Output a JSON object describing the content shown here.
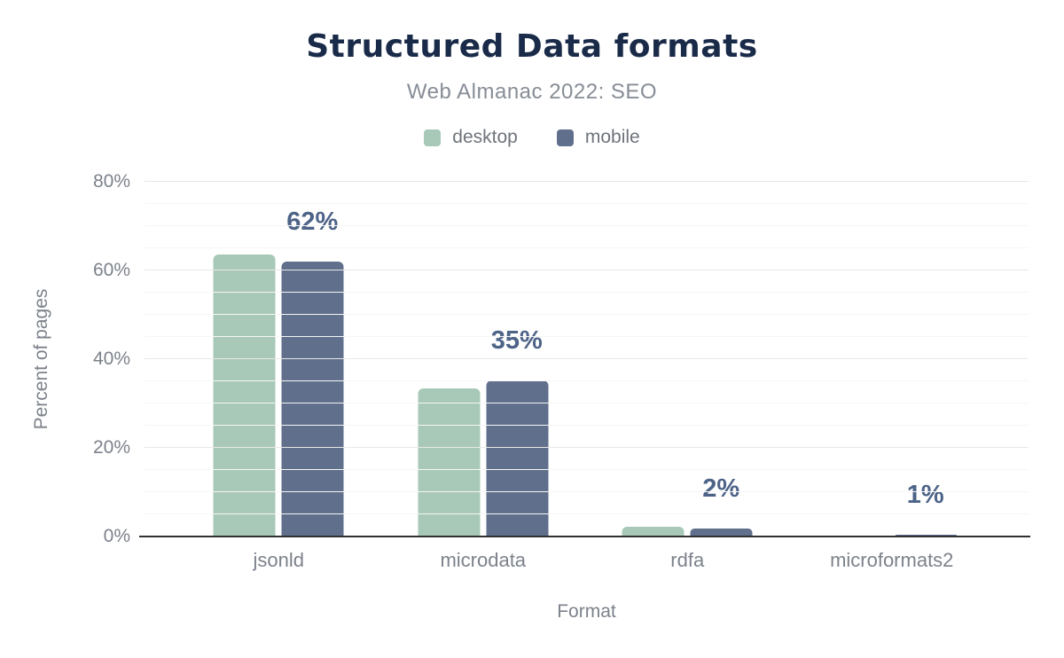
{
  "chart_data": {
    "type": "bar",
    "title": "Structured Data formats",
    "subtitle": "Web Almanac 2022: SEO",
    "xlabel": "Format",
    "ylabel": "Percent of pages",
    "categories": [
      "jsonld",
      "microdata",
      "rdfa",
      "microformats2"
    ],
    "series": [
      {
        "name": "desktop",
        "color": "#a8c9b8",
        "values": [
          63.6,
          33.4,
          2.3,
          0.1
        ]
      },
      {
        "name": "mobile",
        "color": "#5f6f8c",
        "values": [
          62.0,
          35.3,
          1.9,
          0.5
        ]
      }
    ],
    "bar_labels": [
      "62%",
      "35%",
      "2%",
      "1%"
    ],
    "ylim": [
      0,
      80
    ],
    "yticks": [
      0,
      20,
      40,
      60,
      80
    ],
    "ytick_labels": [
      "0%",
      "20%",
      "40%",
      "60%",
      "80%"
    ],
    "minor_tick_step": 5,
    "major_tick_step": 20,
    "legend_position": "top",
    "grid": true,
    "colors": {
      "title": "#1a2b49",
      "subtitle": "#878d96",
      "data_label": "#4d6387",
      "axis_text": "#7c828b",
      "axis_line": "#303030",
      "grid_major": "#e8e8e8",
      "grid_minor": "#f6f6f6"
    }
  }
}
